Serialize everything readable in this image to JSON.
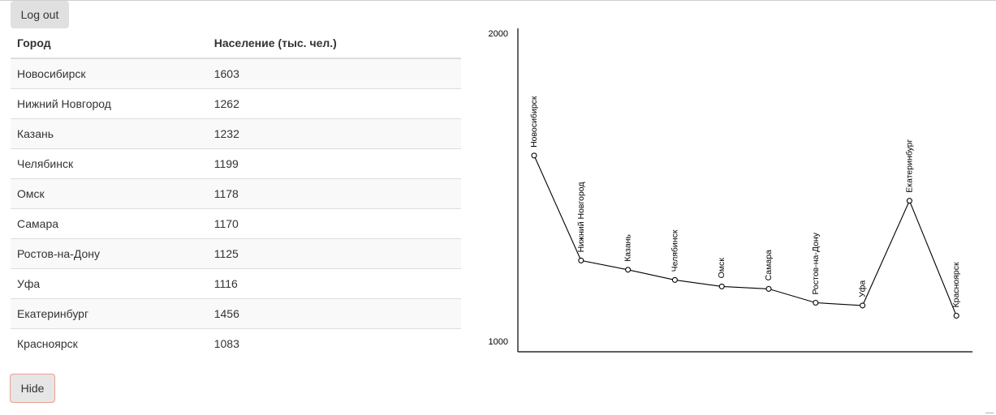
{
  "logout_label": "Log out",
  "hide_label": "Hide",
  "table": {
    "headers": [
      "Город",
      "Население (тыс. чел.)"
    ],
    "rows": [
      [
        "Новосибирск",
        "1603"
      ],
      [
        "Нижний Новгород",
        "1262"
      ],
      [
        "Казань",
        "1232"
      ],
      [
        "Челябинск",
        "1199"
      ],
      [
        "Омск",
        "1178"
      ],
      [
        "Самара",
        "1170"
      ],
      [
        "Ростов-на-Дону",
        "1125"
      ],
      [
        "Уфа",
        "1116"
      ],
      [
        "Екатеринбург",
        "1456"
      ],
      [
        "Красноярск",
        "1083"
      ]
    ]
  },
  "chart_data": {
    "type": "line",
    "categories": [
      "Новосибирск",
      "Нижний Новгород",
      "Казань",
      "Челябинск",
      "Омск",
      "Самара",
      "Ростов-на-Дону",
      "Уфа",
      "Екатеринбург",
      "Красноярск"
    ],
    "values": [
      1603,
      1262,
      1232,
      1199,
      1178,
      1170,
      1125,
      1116,
      1456,
      1083
    ],
    "ylim": [
      1000,
      2000
    ],
    "yticks": [
      "1000",
      "2000"
    ],
    "title": "",
    "xlabel": "",
    "ylabel": "",
    "grid": false,
    "colors": {
      "line": "#000000",
      "marker_fill": "#ffffff"
    }
  }
}
